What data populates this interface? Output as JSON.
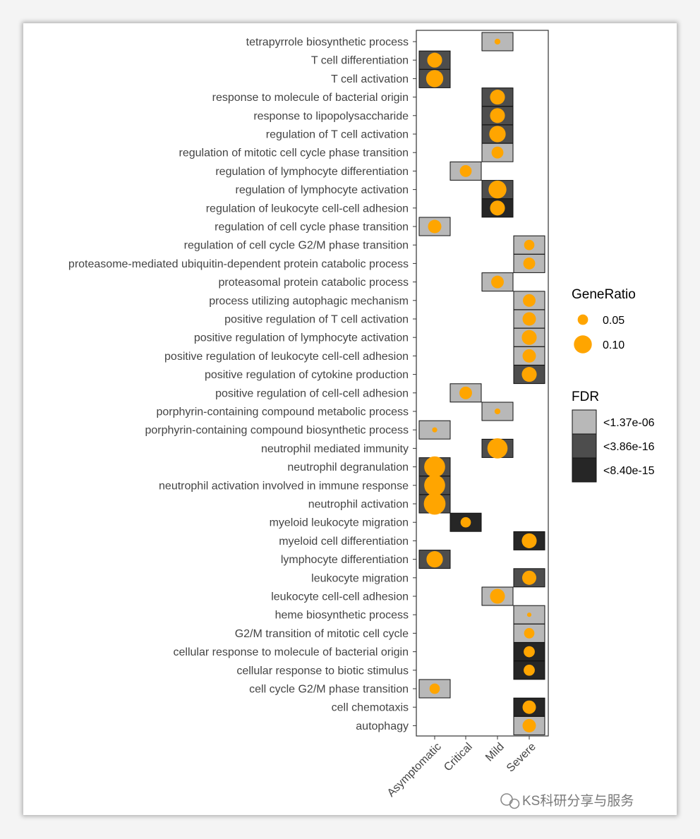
{
  "chart_data": {
    "type": "dotplot",
    "x_categories": [
      "Asymptomatic",
      "Critical",
      "Mild",
      "Severe"
    ],
    "y_categories": [
      "tetrapyrrole biosynthetic process",
      "T cell differentiation",
      "T cell activation",
      "response to molecule of bacterial origin",
      "response to lipopolysaccharide",
      "regulation of T cell activation",
      "regulation of mitotic cell cycle phase transition",
      "regulation of lymphocyte differentiation",
      "regulation of lymphocyte activation",
      "regulation of leukocyte cell-cell adhesion",
      "regulation of cell cycle phase transition",
      "regulation of cell cycle G2/M phase transition",
      "proteasome-mediated ubiquitin-dependent protein catabolic process",
      "proteasomal protein catabolic process",
      "process utilizing autophagic mechanism",
      "positive regulation of T cell activation",
      "positive regulation of lymphocyte activation",
      "positive regulation of leukocyte cell-cell adhesion",
      "positive regulation of cytokine production",
      "positive regulation of cell-cell adhesion",
      "porphyrin-containing compound metabolic process",
      "porphyrin-containing compound biosynthetic process",
      "neutrophil mediated immunity",
      "neutrophil degranulation",
      "neutrophil activation involved in immune response",
      "neutrophil activation",
      "myeloid leukocyte migration",
      "myeloid cell differentiation",
      "lymphocyte differentiation",
      "leukocyte migration",
      "leukocyte cell-cell adhesion",
      "heme biosynthetic process",
      "G2/M transition of mitotic cell cycle",
      "cellular response to molecule of bacterial origin",
      "cellular response to biotic stimulus",
      "cell cycle G2/M phase transition",
      "cell chemotaxis",
      "autophagy"
    ],
    "points": [
      {
        "y": "tetrapyrrole biosynthetic process",
        "x": "Mild",
        "gene_ratio": 0.02,
        "fdr": "<1.37e-06"
      },
      {
        "y": "T cell differentiation",
        "x": "Asymptomatic",
        "gene_ratio": 0.08,
        "fdr": "<3.86e-16"
      },
      {
        "y": "T cell activation",
        "x": "Asymptomatic",
        "gene_ratio": 0.095,
        "fdr": "<3.86e-16"
      },
      {
        "y": "response to molecule of bacterial origin",
        "x": "Mild",
        "gene_ratio": 0.08,
        "fdr": "<3.86e-16"
      },
      {
        "y": "response to lipopolysaccharide",
        "x": "Mild",
        "gene_ratio": 0.08,
        "fdr": "<3.86e-16"
      },
      {
        "y": "regulation of T cell activation",
        "x": "Mild",
        "gene_ratio": 0.09,
        "fdr": "<3.86e-16"
      },
      {
        "y": "regulation of mitotic cell cycle phase transition",
        "x": "Mild",
        "gene_ratio": 0.06,
        "fdr": "<1.37e-06"
      },
      {
        "y": "regulation of lymphocyte differentiation",
        "x": "Critical",
        "gene_ratio": 0.06,
        "fdr": "<1.37e-06"
      },
      {
        "y": "regulation of lymphocyte activation",
        "x": "Mild",
        "gene_ratio": 0.1,
        "fdr": "<3.86e-16"
      },
      {
        "y": "regulation of leukocyte cell-cell adhesion",
        "x": "Mild",
        "gene_ratio": 0.08,
        "fdr": "<8.40e-15"
      },
      {
        "y": "regulation of cell cycle phase transition",
        "x": "Asymptomatic",
        "gene_ratio": 0.07,
        "fdr": "<1.37e-06"
      },
      {
        "y": "regulation of cell cycle G2/M phase transition",
        "x": "Severe",
        "gene_ratio": 0.05,
        "fdr": "<1.37e-06"
      },
      {
        "y": "proteasome-mediated ubiquitin-dependent protein catabolic process",
        "x": "Severe",
        "gene_ratio": 0.06,
        "fdr": "<1.37e-06"
      },
      {
        "y": "proteasomal protein catabolic process",
        "x": "Mild",
        "gene_ratio": 0.065,
        "fdr": "<1.37e-06"
      },
      {
        "y": "process utilizing autophagic mechanism",
        "x": "Severe",
        "gene_ratio": 0.065,
        "fdr": "<1.37e-06"
      },
      {
        "y": "positive regulation of T cell activation",
        "x": "Severe",
        "gene_ratio": 0.07,
        "fdr": "<1.37e-06"
      },
      {
        "y": "positive regulation of lymphocyte activation",
        "x": "Severe",
        "gene_ratio": 0.08,
        "fdr": "<1.37e-06"
      },
      {
        "y": "positive regulation of leukocyte cell-cell adhesion",
        "x": "Severe",
        "gene_ratio": 0.07,
        "fdr": "<1.37e-06"
      },
      {
        "y": "positive regulation of cytokine production",
        "x": "Severe",
        "gene_ratio": 0.08,
        "fdr": "<3.86e-16"
      },
      {
        "y": "positive regulation of cell-cell adhesion",
        "x": "Critical",
        "gene_ratio": 0.065,
        "fdr": "<1.37e-06"
      },
      {
        "y": "porphyrin-containing compound metabolic process",
        "x": "Mild",
        "gene_ratio": 0.02,
        "fdr": "<1.37e-06"
      },
      {
        "y": "porphyrin-containing compound biosynthetic process",
        "x": "Asymptomatic",
        "gene_ratio": 0.015,
        "fdr": "<1.37e-06"
      },
      {
        "y": "neutrophil mediated immunity",
        "x": "Mild",
        "gene_ratio": 0.115,
        "fdr": "<3.86e-16"
      },
      {
        "y": "neutrophil degranulation",
        "x": "Asymptomatic",
        "gene_ratio": 0.12,
        "fdr": "<3.86e-16"
      },
      {
        "y": "neutrophil activation involved in immune response",
        "x": "Asymptomatic",
        "gene_ratio": 0.12,
        "fdr": "<3.86e-16"
      },
      {
        "y": "neutrophil activation",
        "x": "Asymptomatic",
        "gene_ratio": 0.125,
        "fdr": "<3.86e-16"
      },
      {
        "y": "myeloid leukocyte migration",
        "x": "Critical",
        "gene_ratio": 0.05,
        "fdr": "<8.40e-15"
      },
      {
        "y": "myeloid cell differentiation",
        "x": "Severe",
        "gene_ratio": 0.08,
        "fdr": "<8.40e-15"
      },
      {
        "y": "lymphocyte differentiation",
        "x": "Asymptomatic",
        "gene_ratio": 0.09,
        "fdr": "<3.86e-16"
      },
      {
        "y": "leukocyte migration",
        "x": "Severe",
        "gene_ratio": 0.075,
        "fdr": "<3.86e-16"
      },
      {
        "y": "leukocyte cell-cell adhesion",
        "x": "Mild",
        "gene_ratio": 0.08,
        "fdr": "<1.37e-06"
      },
      {
        "y": "heme biosynthetic process",
        "x": "Severe",
        "gene_ratio": 0.01,
        "fdr": "<1.37e-06"
      },
      {
        "y": "G2/M transition of mitotic cell cycle",
        "x": "Severe",
        "gene_ratio": 0.05,
        "fdr": "<1.37e-06"
      },
      {
        "y": "cellular response to molecule of bacterial origin",
        "x": "Severe",
        "gene_ratio": 0.055,
        "fdr": "<8.40e-15"
      },
      {
        "y": "cellular response to biotic stimulus",
        "x": "Severe",
        "gene_ratio": 0.055,
        "fdr": "<8.40e-15"
      },
      {
        "y": "cell cycle G2/M phase transition",
        "x": "Asymptomatic",
        "gene_ratio": 0.05,
        "fdr": "<1.37e-06"
      },
      {
        "y": "cell chemotaxis",
        "x": "Severe",
        "gene_ratio": 0.07,
        "fdr": "<8.40e-15"
      },
      {
        "y": "autophagy",
        "x": "Severe",
        "gene_ratio": 0.07,
        "fdr": "<1.37e-06"
      }
    ],
    "legend_size": {
      "title": "GeneRatio",
      "items": [
        {
          "label": "0.05",
          "value": 0.05
        },
        {
          "label": "0.10",
          "value": 0.1
        }
      ]
    },
    "legend_fill": {
      "title": "FDR",
      "items": [
        {
          "label": "<1.37e-06",
          "color": "#b8b8b8"
        },
        {
          "label": "<3.86e-16",
          "color": "#4d4d4d"
        },
        {
          "label": "<8.40e-15",
          "color": "#262626"
        }
      ]
    },
    "point_color": "#ffa500",
    "legend_placement": "right",
    "grid": false
  },
  "watermark": "KS科研分享与服务"
}
